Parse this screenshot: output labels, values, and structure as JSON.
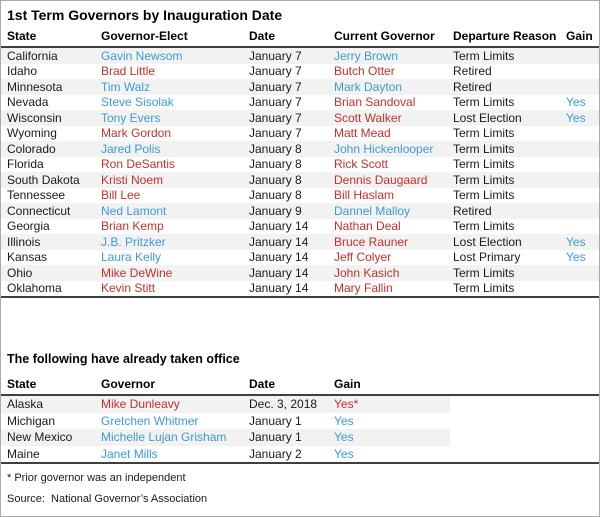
{
  "title": "1st Term Governors by Inauguration Date",
  "colors": {
    "democrat_blue": "#3c9bd5",
    "republican_red": "#c4302b",
    "row_stripe": "#f2f2f2",
    "rule": "#3f3f3f",
    "page_border": "#ababab"
  },
  "table1": {
    "headers": [
      "State",
      "Governor-Elect",
      "Date",
      "Current Governor",
      "Departure Reason",
      "Gain"
    ],
    "rows": [
      {
        "state": "California",
        "elect": "Gavin Newsom",
        "elect_party": "dem",
        "date": "January 7",
        "current": "Jerry Brown",
        "current_party": "dem",
        "reason": "Term Limits",
        "gain": "",
        "gain_party": ""
      },
      {
        "state": "Idaho",
        "elect": "Brad Little",
        "elect_party": "rep",
        "date": "January 7",
        "current": "Butch Otter",
        "current_party": "rep",
        "reason": "Retired",
        "gain": "",
        "gain_party": ""
      },
      {
        "state": "Minnesota",
        "elect": "Tim Walz",
        "elect_party": "dem",
        "date": "January 7",
        "current": "Mark Dayton",
        "current_party": "dem",
        "reason": "Retired",
        "gain": "",
        "gain_party": ""
      },
      {
        "state": "Nevada",
        "elect": "Steve Sisolak",
        "elect_party": "dem",
        "date": "January 7",
        "current": "Brian Sandoval",
        "current_party": "rep",
        "reason": "Term Limits",
        "gain": "Yes",
        "gain_party": "dem"
      },
      {
        "state": "Wisconsin",
        "elect": "Tony Evers",
        "elect_party": "dem",
        "date": "January 7",
        "current": "Scott Walker",
        "current_party": "rep",
        "reason": "Lost Election",
        "gain": "Yes",
        "gain_party": "dem"
      },
      {
        "state": "Wyoming",
        "elect": "Mark Gordon",
        "elect_party": "rep",
        "date": "January 7",
        "current": "Matt Mead",
        "current_party": "rep",
        "reason": "Term Limits",
        "gain": "",
        "gain_party": ""
      },
      {
        "state": "Colorado",
        "elect": "Jared Polis",
        "elect_party": "dem",
        "date": "January 8",
        "current": "John Hickenlooper",
        "current_party": "dem",
        "reason": "Term Limits",
        "gain": "",
        "gain_party": ""
      },
      {
        "state": "Florida",
        "elect": "Ron DeSantis",
        "elect_party": "rep",
        "date": "January 8",
        "current": "Rick Scott",
        "current_party": "rep",
        "reason": "Term Limits",
        "gain": "",
        "gain_party": ""
      },
      {
        "state": "South Dakota",
        "elect": "Kristi Noem",
        "elect_party": "rep",
        "date": "January 8",
        "current": "Dennis Daugaard",
        "current_party": "rep",
        "reason": "Term Limits",
        "gain": "",
        "gain_party": ""
      },
      {
        "state": "Tennessee",
        "elect": "Bill Lee",
        "elect_party": "rep",
        "date": "January 8",
        "current": "Bill Haslam",
        "current_party": "rep",
        "reason": "Term Limits",
        "gain": "",
        "gain_party": ""
      },
      {
        "state": "Connecticut",
        "elect": "Ned Lamont",
        "elect_party": "dem",
        "date": "January 9",
        "current": "Dannel Malloy",
        "current_party": "dem",
        "reason": "Retired",
        "gain": "",
        "gain_party": ""
      },
      {
        "state": "Georgia",
        "elect": "Brian Kemp",
        "elect_party": "rep",
        "date": "January 14",
        "current": "Nathan Deal",
        "current_party": "rep",
        "reason": "Term Limits",
        "gain": "",
        "gain_party": ""
      },
      {
        "state": "Illinois",
        "elect": "J.B. Pritzker",
        "elect_party": "dem",
        "date": "January 14",
        "current": "Bruce Rauner",
        "current_party": "rep",
        "reason": "Lost Election",
        "gain": "Yes",
        "gain_party": "dem"
      },
      {
        "state": "Kansas",
        "elect": "Laura Kelly",
        "elect_party": "dem",
        "date": "January 14",
        "current": "Jeff Colyer",
        "current_party": "rep",
        "reason": "Lost Primary",
        "gain": "Yes",
        "gain_party": "dem"
      },
      {
        "state": "Ohio",
        "elect": "Mike DeWine",
        "elect_party": "rep",
        "date": "January 14",
        "current": "John Kasich",
        "current_party": "rep",
        "reason": "Term Limits",
        "gain": "",
        "gain_party": ""
      },
      {
        "state": "Oklahoma",
        "elect": "Kevin Stitt",
        "elect_party": "rep",
        "date": "January 14",
        "current": "Mary Fallin",
        "current_party": "rep",
        "reason": "Term Limits",
        "gain": "",
        "gain_party": ""
      }
    ]
  },
  "section2": {
    "title": "The following have already taken office",
    "headers": [
      "State",
      "Governor",
      "Date",
      "Gain"
    ],
    "rows": [
      {
        "state": "Alaska",
        "governor": "Mike Dunleavy",
        "party": "rep",
        "date": "Dec. 3, 2018",
        "gain": "Yes*",
        "gain_party": "rep"
      },
      {
        "state": "Michigan",
        "governor": "Gretchen Whitmer",
        "party": "dem",
        "date": "January 1",
        "gain": "Yes",
        "gain_party": "dem"
      },
      {
        "state": "New Mexico",
        "governor": "Michelle Lujan Grisham",
        "party": "dem",
        "date": "January 1",
        "gain": "Yes",
        "gain_party": "dem"
      },
      {
        "state": "Maine",
        "governor": "Janet Mills",
        "party": "dem",
        "date": "January 2",
        "gain": "Yes",
        "gain_party": "dem"
      }
    ]
  },
  "footnote": "* Prior governor was an independent",
  "source": "Source:  National Governor’s Association"
}
